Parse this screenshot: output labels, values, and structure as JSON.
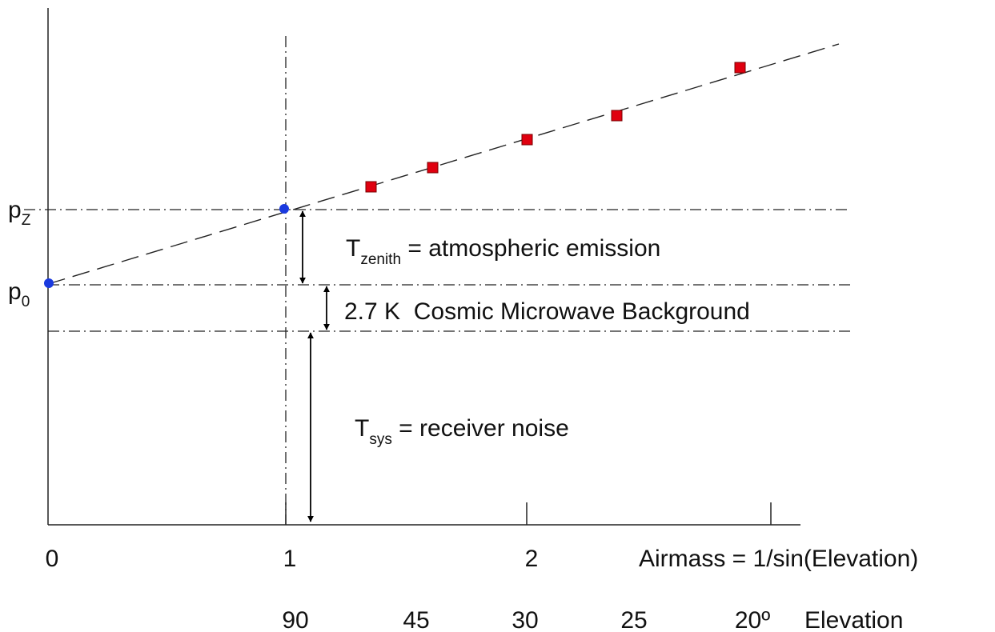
{
  "labels": {
    "p_z": {
      "main": "p",
      "sub": "Z"
    },
    "p_0": {
      "main": "p",
      "sub": "0"
    },
    "t_zenith": {
      "main": "T",
      "sub": "zenith",
      "rest": " = atmospheric emission"
    },
    "cmb": "2.7 K  Cosmic Microwave Background",
    "t_sys": {
      "main": "T",
      "sub": "sys",
      "rest": " = receiver noise"
    }
  },
  "airmass_axis": {
    "ticks": [
      "0",
      "1",
      "2"
    ],
    "label": "Airmass = 1/sin(Elevation)"
  },
  "elevation_axis": {
    "ticks": [
      "90",
      "45",
      "30",
      "25",
      "20º"
    ],
    "label": "Elevation"
  }
}
